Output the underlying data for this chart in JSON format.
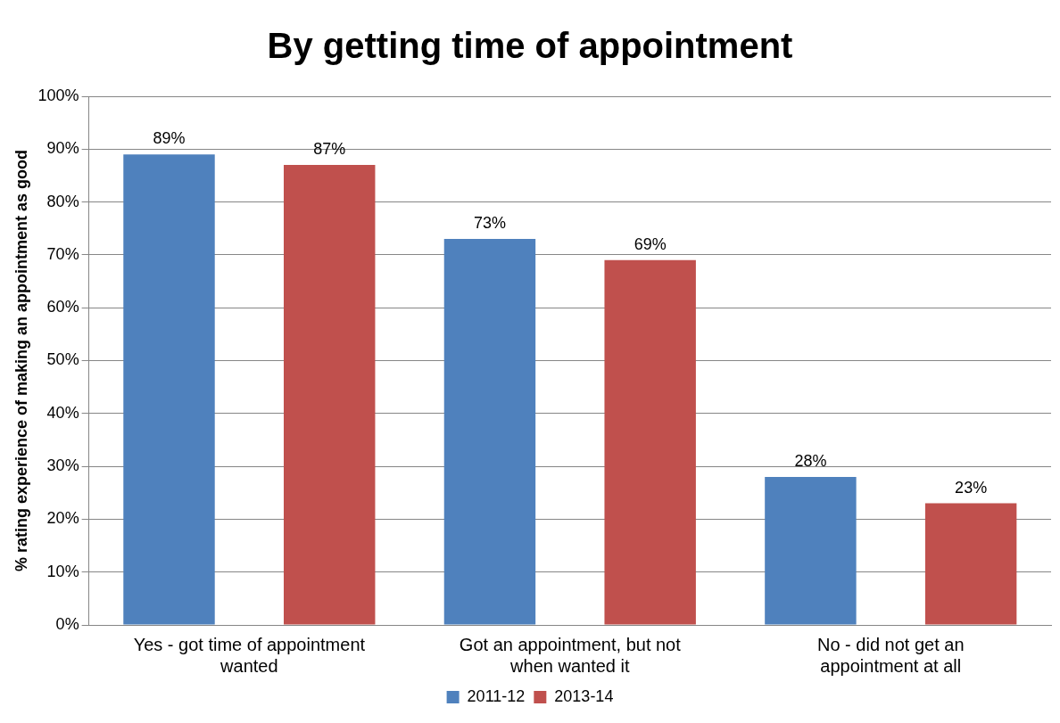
{
  "chart_data": {
    "type": "bar",
    "title": "By getting time of appointment",
    "ylabel": "% rating experience of making an appointment as good",
    "categories": [
      "Yes - got time of appointment wanted",
      "Got an appointment, but not when wanted it",
      "No - did not get an appointment at all"
    ],
    "series": [
      {
        "name": "2011-12",
        "color": "#4f81bd",
        "values": [
          89,
          73,
          28
        ],
        "value_labels": [
          "89%",
          "73%",
          "28%"
        ]
      },
      {
        "name": "2013-14",
        "color": "#c0504d",
        "values": [
          87,
          69,
          23
        ],
        "value_labels": [
          "87%",
          "69%",
          "23%"
        ]
      }
    ],
    "ylim": [
      0,
      100
    ],
    "yticks": [
      {
        "value": 0,
        "label": "0%"
      },
      {
        "value": 10,
        "label": "10%"
      },
      {
        "value": 20,
        "label": "20%"
      },
      {
        "value": 30,
        "label": "30%"
      },
      {
        "value": 40,
        "label": "40%"
      },
      {
        "value": 50,
        "label": "50%"
      },
      {
        "value": 60,
        "label": "60%"
      },
      {
        "value": 70,
        "label": "70%"
      },
      {
        "value": 80,
        "label": "80%"
      },
      {
        "value": 90,
        "label": "90%"
      },
      {
        "value": 100,
        "label": "100%"
      }
    ],
    "grid": "y",
    "legend": "bottom"
  }
}
